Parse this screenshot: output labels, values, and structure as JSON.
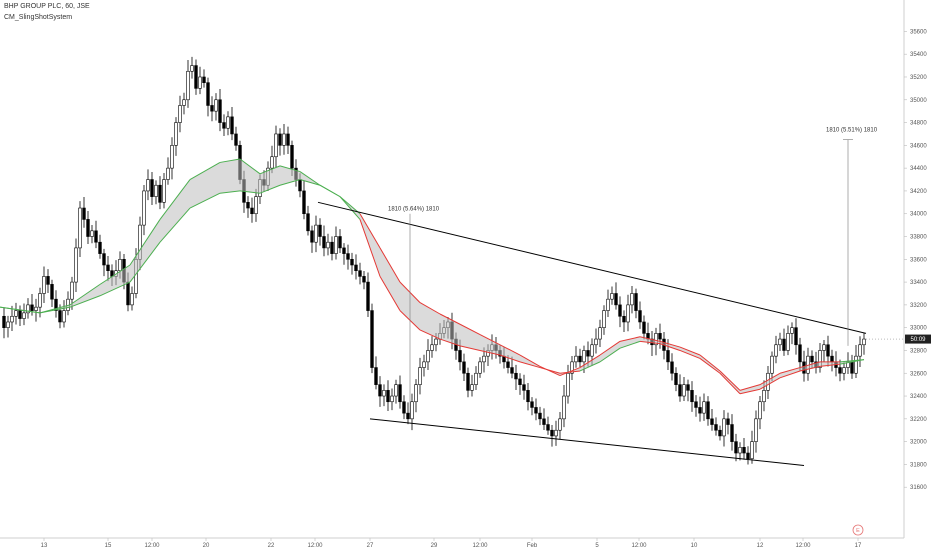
{
  "header": {
    "symbol_line": "BHP GROUP PLC, 60, JSE",
    "indicator_line": "CM_SlingShotSystem"
  },
  "price_axis": {
    "ticks": [
      35600,
      35400,
      35200,
      35000,
      34800,
      34600,
      34400,
      34200,
      34000,
      33800,
      33600,
      33400,
      33200,
      33000,
      32800,
      32600,
      32400,
      32200,
      32000,
      31800,
      31600
    ],
    "current_label": "50:09"
  },
  "time_axis": {
    "labels": [
      "13",
      "15",
      "12:00",
      "20",
      "22",
      "12:00",
      "27",
      "29",
      "12:00",
      "Feb",
      "5",
      "12:00",
      "10",
      "12",
      "12:00",
      "17"
    ]
  },
  "annotations": {
    "measure_left": "1810 (5.64%) 1810",
    "measure_right": "1810 (5.51%) 1810"
  },
  "event_marker": "E",
  "colors": {
    "up": "#000000",
    "down": "#000000",
    "ema_fast": "#e53935",
    "ema_slow_up": "#4caf50",
    "cloud": "#bdbdbd",
    "trendline": "#000000",
    "price_tag": "#212121"
  },
  "chart_data": {
    "type": "candlestick",
    "title": "BHP GROUP PLC, 60, JSE",
    "ylim": [
      31400,
      35700
    ],
    "close_path": [
      [
        0,
        33100
      ],
      [
        4,
        33000
      ],
      [
        8,
        33050
      ],
      [
        12,
        33100
      ],
      [
        16,
        33150
      ],
      [
        20,
        33080
      ],
      [
        24,
        33130
      ],
      [
        28,
        33200
      ],
      [
        32,
        33150
      ],
      [
        36,
        33180
      ],
      [
        40,
        33300
      ],
      [
        44,
        33450
      ],
      [
        48,
        33380
      ],
      [
        52,
        33250
      ],
      [
        56,
        33150
      ],
      [
        60,
        33050
      ],
      [
        64,
        33150
      ],
      [
        68,
        33250
      ],
      [
        72,
        33400
      ],
      [
        76,
        33700
      ],
      [
        80,
        34050
      ],
      [
        84,
        33950
      ],
      [
        88,
        33800
      ],
      [
        92,
        33850
      ],
      [
        96,
        33750
      ],
      [
        100,
        33650
      ],
      [
        104,
        33550
      ],
      [
        108,
        33500
      ],
      [
        112,
        33450
      ],
      [
        116,
        33500
      ],
      [
        120,
        33600
      ],
      [
        124,
        33400
      ],
      [
        128,
        33200
      ],
      [
        132,
        33300
      ],
      [
        136,
        33600
      ],
      [
        140,
        33900
      ],
      [
        144,
        34200
      ],
      [
        148,
        34300
      ],
      [
        152,
        34150
      ],
      [
        156,
        34250
      ],
      [
        160,
        34100
      ],
      [
        164,
        34300
      ],
      [
        168,
        34400
      ],
      [
        172,
        34600
      ],
      [
        176,
        34800
      ],
      [
        180,
        34950
      ],
      [
        184,
        35000
      ],
      [
        188,
        35250
      ],
      [
        192,
        35300
      ],
      [
        196,
        35100
      ],
      [
        200,
        35200
      ],
      [
        204,
        35150
      ],
      [
        208,
        34950
      ],
      [
        212,
        34900
      ],
      [
        216,
        35000
      ],
      [
        220,
        34800
      ],
      [
        224,
        34750
      ],
      [
        228,
        34850
      ],
      [
        232,
        34700
      ],
      [
        236,
        34600
      ],
      [
        240,
        34300
      ],
      [
        244,
        34100
      ],
      [
        248,
        34050
      ],
      [
        252,
        34000
      ],
      [
        256,
        34150
      ],
      [
        260,
        34300
      ],
      [
        264,
        34250
      ],
      [
        268,
        34400
      ],
      [
        272,
        34500
      ],
      [
        276,
        34700
      ],
      [
        280,
        34600
      ],
      [
        284,
        34700
      ],
      [
        288,
        34600
      ],
      [
        292,
        34400
      ],
      [
        296,
        34300
      ],
      [
        300,
        34200
      ],
      [
        304,
        34000
      ],
      [
        308,
        33850
      ],
      [
        312,
        33750
      ],
      [
        316,
        33900
      ],
      [
        320,
        33800
      ],
      [
        324,
        33700
      ],
      [
        328,
        33750
      ],
      [
        332,
        33650
      ],
      [
        336,
        33800
      ],
      [
        340,
        33700
      ],
      [
        344,
        33650
      ],
      [
        348,
        33600
      ],
      [
        352,
        33550
      ],
      [
        356,
        33500
      ],
      [
        360,
        33450
      ],
      [
        364,
        33400
      ],
      [
        368,
        33150
      ],
      [
        372,
        32650
      ],
      [
        376,
        32500
      ],
      [
        380,
        32400
      ],
      [
        384,
        32450
      ],
      [
        388,
        32350
      ],
      [
        392,
        32400
      ],
      [
        396,
        32500
      ],
      [
        400,
        32350
      ],
      [
        404,
        32250
      ],
      [
        408,
        32200
      ],
      [
        412,
        32350
      ],
      [
        416,
        32500
      ],
      [
        420,
        32650
      ],
      [
        424,
        32700
      ],
      [
        428,
        32800
      ],
      [
        432,
        32850
      ],
      [
        436,
        32900
      ],
      [
        440,
        32950
      ],
      [
        444,
        33000
      ],
      [
        448,
        33050
      ],
      [
        452,
        32900
      ],
      [
        456,
        32800
      ],
      [
        460,
        32700
      ],
      [
        464,
        32600
      ],
      [
        468,
        32450
      ],
      [
        472,
        32500
      ],
      [
        476,
        32600
      ],
      [
        480,
        32700
      ],
      [
        484,
        32750
      ],
      [
        488,
        32800
      ],
      [
        492,
        32850
      ],
      [
        496,
        32800
      ],
      [
        500,
        32750
      ],
      [
        504,
        32700
      ],
      [
        508,
        32650
      ],
      [
        512,
        32600
      ],
      [
        516,
        32550
      ],
      [
        520,
        32500
      ],
      [
        524,
        32450
      ],
      [
        528,
        32350
      ],
      [
        532,
        32300
      ],
      [
        536,
        32250
      ],
      [
        540,
        32200
      ],
      [
        544,
        32150
      ],
      [
        548,
        32100
      ],
      [
        552,
        32050
      ],
      [
        556,
        32100
      ],
      [
        560,
        32200
      ],
      [
        564,
        32400
      ],
      [
        568,
        32600
      ],
      [
        572,
        32700
      ],
      [
        576,
        32750
      ],
      [
        580,
        32700
      ],
      [
        584,
        32800
      ],
      [
        588,
        32750
      ],
      [
        592,
        32850
      ],
      [
        596,
        32900
      ],
      [
        600,
        33000
      ],
      [
        604,
        33150
      ],
      [
        608,
        33250
      ],
      [
        612,
        33300
      ],
      [
        616,
        33200
      ],
      [
        620,
        33100
      ],
      [
        624,
        33050
      ],
      [
        628,
        33200
      ],
      [
        632,
        33300
      ],
      [
        636,
        33150
      ],
      [
        640,
        33050
      ],
      [
        644,
        32950
      ],
      [
        648,
        32900
      ],
      [
        652,
        32850
      ],
      [
        656,
        32950
      ],
      [
        660,
        32900
      ],
      [
        664,
        32800
      ],
      [
        668,
        32700
      ],
      [
        672,
        32600
      ],
      [
        676,
        32500
      ],
      [
        680,
        32400
      ],
      [
        684,
        32500
      ],
      [
        688,
        32450
      ],
      [
        692,
        32350
      ],
      [
        696,
        32300
      ],
      [
        700,
        32250
      ],
      [
        704,
        32350
      ],
      [
        708,
        32200
      ],
      [
        712,
        32150
      ],
      [
        716,
        32100
      ],
      [
        720,
        32050
      ],
      [
        724,
        32200
      ],
      [
        728,
        32150
      ],
      [
        732,
        32000
      ],
      [
        736,
        31900
      ],
      [
        740,
        31950
      ],
      [
        744,
        31900
      ],
      [
        748,
        31850
      ],
      [
        752,
        32000
      ],
      [
        756,
        32200
      ],
      [
        760,
        32350
      ],
      [
        764,
        32450
      ],
      [
        768,
        32600
      ],
      [
        772,
        32750
      ],
      [
        776,
        32850
      ],
      [
        780,
        32900
      ],
      [
        784,
        32800
      ],
      [
        788,
        32950
      ],
      [
        792,
        33000
      ],
      [
        796,
        32850
      ],
      [
        800,
        32700
      ],
      [
        804,
        32600
      ],
      [
        808,
        32750
      ],
      [
        812,
        32700
      ],
      [
        816,
        32650
      ],
      [
        820,
        32800
      ],
      [
        824,
        32850
      ],
      [
        828,
        32750
      ],
      [
        832,
        32700
      ],
      [
        836,
        32650
      ],
      [
        840,
        32600
      ],
      [
        844,
        32650
      ],
      [
        848,
        32700
      ],
      [
        852,
        32600
      ],
      [
        856,
        32750
      ],
      [
        860,
        32850
      ],
      [
        864,
        32900
      ]
    ],
    "ema_fast": [
      [
        0,
        33180
      ],
      [
        40,
        33130
      ],
      [
        70,
        33200
      ],
      [
        100,
        33380
      ],
      [
        130,
        33550
      ],
      [
        160,
        33950
      ],
      [
        190,
        34300
      ],
      [
        220,
        34450
      ],
      [
        240,
        34480
      ],
      [
        260,
        34350
      ],
      [
        280,
        34420
      ],
      [
        300,
        34370
      ],
      [
        320,
        34250
      ],
      [
        340,
        34150
      ],
      [
        360,
        34000
      ],
      [
        380,
        33700
      ],
      [
        400,
        33400
      ],
      [
        420,
        33220
      ],
      [
        440,
        33120
      ],
      [
        460,
        33030
      ],
      [
        480,
        32940
      ],
      [
        500,
        32850
      ],
      [
        520,
        32760
      ],
      [
        540,
        32660
      ],
      [
        560,
        32580
      ],
      [
        580,
        32650
      ],
      [
        600,
        32760
      ],
      [
        620,
        32880
      ],
      [
        640,
        32920
      ],
      [
        660,
        32880
      ],
      [
        680,
        32830
      ],
      [
        700,
        32760
      ],
      [
        720,
        32620
      ],
      [
        740,
        32450
      ],
      [
        760,
        32500
      ],
      [
        780,
        32600
      ],
      [
        800,
        32650
      ],
      [
        820,
        32700
      ],
      [
        840,
        32700
      ],
      [
        864,
        32720
      ]
    ],
    "ema_slow": [
      [
        0,
        33180
      ],
      [
        40,
        33130
      ],
      [
        70,
        33180
      ],
      [
        100,
        33280
      ],
      [
        130,
        33400
      ],
      [
        160,
        33750
      ],
      [
        190,
        34050
      ],
      [
        220,
        34180
      ],
      [
        240,
        34200
      ],
      [
        260,
        34180
      ],
      [
        280,
        34250
      ],
      [
        300,
        34300
      ],
      [
        320,
        34250
      ],
      [
        340,
        34150
      ],
      [
        360,
        33950
      ],
      [
        380,
        33450
      ],
      [
        400,
        33150
      ],
      [
        420,
        32980
      ],
      [
        440,
        32900
      ],
      [
        460,
        32840
      ],
      [
        480,
        32800
      ],
      [
        500,
        32760
      ],
      [
        520,
        32700
      ],
      [
        540,
        32650
      ],
      [
        560,
        32600
      ],
      [
        580,
        32620
      ],
      [
        600,
        32700
      ],
      [
        620,
        32820
      ],
      [
        640,
        32880
      ],
      [
        660,
        32860
      ],
      [
        680,
        32800
      ],
      [
        700,
        32730
      ],
      [
        720,
        32600
      ],
      [
        740,
        32420
      ],
      [
        760,
        32460
      ],
      [
        780,
        32560
      ],
      [
        800,
        32620
      ],
      [
        820,
        32660
      ],
      [
        840,
        32680
      ],
      [
        864,
        32720
      ]
    ],
    "trendline_upper": {
      "from": [
        318,
        34100
      ],
      "to": [
        866,
        32950
      ]
    },
    "trendline_lower": {
      "from": [
        370,
        32200
      ],
      "to": [
        804,
        31790
      ]
    }
  }
}
